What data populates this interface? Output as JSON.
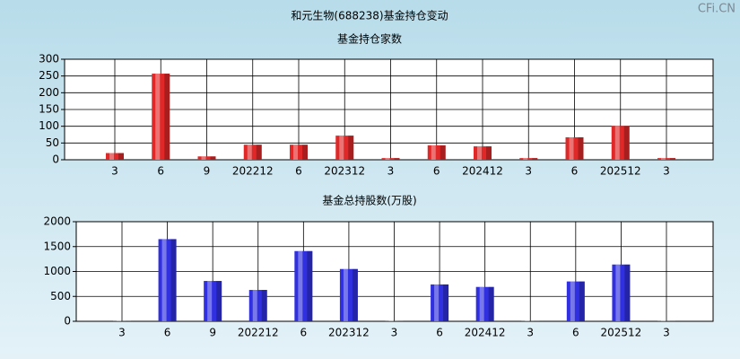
{
  "watermark": "CFi.CN",
  "chart_data": [
    {
      "type": "bar",
      "title": "和元生物(688238)基金持仓变动",
      "subtitle": "基金持仓家数",
      "categories": [
        "3",
        "6",
        "9",
        "202212",
        "6",
        "202312",
        "3",
        "6",
        "202412",
        "3",
        "6",
        "202512",
        "3"
      ],
      "values": [
        20,
        257,
        10,
        45,
        45,
        72,
        5,
        43,
        40,
        5,
        67,
        101,
        5
      ],
      "color": "#e02828",
      "ylim": [
        0,
        300
      ],
      "yticks": [
        0,
        50,
        100,
        150,
        200,
        250,
        300
      ],
      "grid": true
    },
    {
      "type": "bar",
      "title": "基金总持股数(万股)",
      "categories": [
        "3",
        "6",
        "9",
        "202212",
        "6",
        "202312",
        "3",
        "6",
        "202412",
        "3",
        "6",
        "202512",
        "3"
      ],
      "values": [
        10,
        1650,
        810,
        630,
        1410,
        1050,
        10,
        740,
        690,
        10,
        800,
        1140,
        10
      ],
      "color": "#3030e0",
      "ylim": [
        0,
        2000
      ],
      "yticks": [
        0,
        500,
        1000,
        1500,
        2000
      ],
      "grid": true
    }
  ]
}
